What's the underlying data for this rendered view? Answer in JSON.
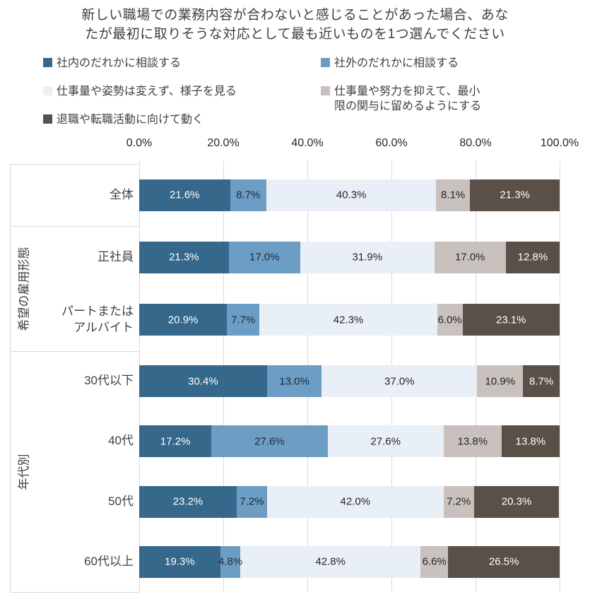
{
  "chart_data": {
    "type": "bar",
    "subtype": "horizontal-stacked-100",
    "title_lines": [
      "新しい職場での業務内容が合わないと感じることがあった場合、あな",
      "たが最初に取りそうな対応として最も近いものを1つ選んでください"
    ],
    "x_ticks": [
      "0.0%",
      "20.0%",
      "40.0%",
      "60.0%",
      "80.0%",
      "100.0%"
    ],
    "xlim": [
      0,
      100
    ],
    "legend_position": "top",
    "grid": "vertical",
    "gridline_color": "#d9d9d9",
    "series": [
      {
        "name": "社内のだれかに相談する",
        "color": "#35688b",
        "label_color": "#ffffff"
      },
      {
        "name": "社外のだれかに相談する",
        "color": "#6c9dc4",
        "label_color": "#1d2a39"
      },
      {
        "name": "仕事量や姿勢は変えず、様子を見る",
        "color": "#e9eff6",
        "label_color": "#262626"
      },
      {
        "name": "仕事量や努力を抑えて、最小限の関与に留めるようにする",
        "color": "#c9c1bd",
        "label_color": "#262626"
      },
      {
        "name": "退職や転職活動に向けて動く",
        "color": "#5a5048",
        "label_color": "#ffffff"
      }
    ],
    "groups": [
      {
        "label": "",
        "rows": [
          {
            "category": "全体",
            "values": [
              21.6,
              8.7,
              40.3,
              8.1,
              21.3
            ]
          }
        ]
      },
      {
        "label": "希望の雇用形態",
        "rows": [
          {
            "category": "正社員",
            "values": [
              21.3,
              17.0,
              31.9,
              17.0,
              12.8
            ]
          },
          {
            "category": "パートまたは\nアルバイト",
            "values": [
              20.9,
              7.7,
              42.3,
              6.0,
              23.1
            ]
          }
        ]
      },
      {
        "label": "年代別",
        "rows": [
          {
            "category": "30代以下",
            "values": [
              30.4,
              13.0,
              37.0,
              10.9,
              8.7
            ]
          },
          {
            "category": "40代",
            "values": [
              17.2,
              27.6,
              27.6,
              13.8,
              13.8
            ]
          },
          {
            "category": "50代",
            "values": [
              23.2,
              7.2,
              42.0,
              7.2,
              20.3
            ]
          },
          {
            "category": "60代以上",
            "values": [
              19.3,
              4.8,
              42.8,
              6.6,
              26.5
            ]
          }
        ]
      }
    ]
  }
}
